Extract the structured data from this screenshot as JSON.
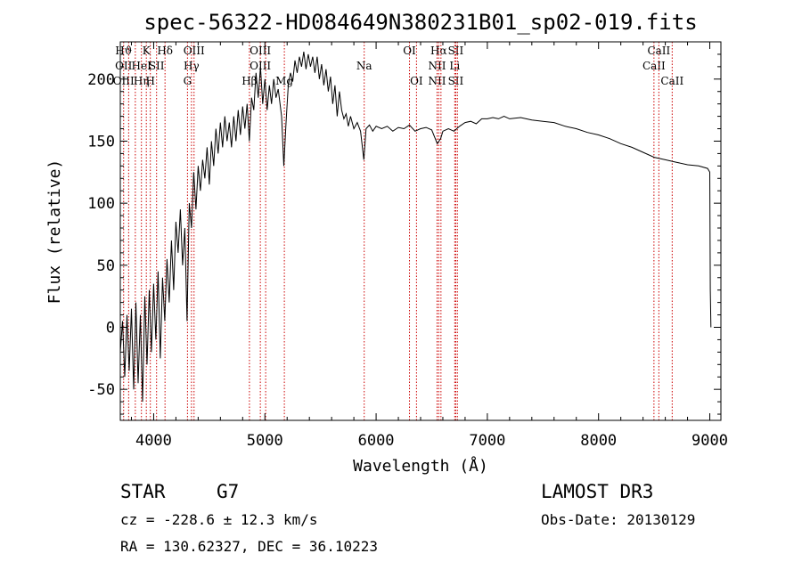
{
  "chart_data": {
    "type": "line",
    "title": "spec-56322-HD084649N380231B01_sp02-019.fits",
    "xlabel": "Wavelength (Å)",
    "ylabel": "Flux (relative)",
    "xlim": [
      3700,
      9100
    ],
    "ylim": [
      -75,
      230
    ],
    "xticks": [
      4000,
      5000,
      6000,
      7000,
      8000,
      9000
    ],
    "yticks": [
      -50,
      0,
      50,
      100,
      150,
      200
    ],
    "grid": false,
    "series": [
      {
        "color": "#000000",
        "points": [
          [
            3700,
            -20
          ],
          [
            3720,
            5
          ],
          [
            3740,
            -40
          ],
          [
            3760,
            10
          ],
          [
            3780,
            -35
          ],
          [
            3800,
            15
          ],
          [
            3820,
            -50
          ],
          [
            3840,
            20
          ],
          [
            3860,
            -45
          ],
          [
            3880,
            10
          ],
          [
            3900,
            -60
          ],
          [
            3920,
            25
          ],
          [
            3940,
            -30
          ],
          [
            3960,
            30
          ],
          [
            3980,
            -20
          ],
          [
            4000,
            35
          ],
          [
            4020,
            -10
          ],
          [
            4040,
            45
          ],
          [
            4060,
            -25
          ],
          [
            4080,
            40
          ],
          [
            4100,
            5
          ],
          [
            4120,
            55
          ],
          [
            4140,
            20
          ],
          [
            4160,
            70
          ],
          [
            4180,
            30
          ],
          [
            4200,
            85
          ],
          [
            4220,
            60
          ],
          [
            4240,
            95
          ],
          [
            4260,
            50
          ],
          [
            4280,
            80
          ],
          [
            4300,
            5
          ],
          [
            4320,
            100
          ],
          [
            4340,
            80
          ],
          [
            4360,
            125
          ],
          [
            4380,
            95
          ],
          [
            4400,
            130
          ],
          [
            4420,
            110
          ],
          [
            4440,
            135
          ],
          [
            4460,
            120
          ],
          [
            4480,
            145
          ],
          [
            4500,
            115
          ],
          [
            4520,
            150
          ],
          [
            4540,
            130
          ],
          [
            4560,
            160
          ],
          [
            4580,
            140
          ],
          [
            4600,
            165
          ],
          [
            4620,
            145
          ],
          [
            4640,
            170
          ],
          [
            4660,
            150
          ],
          [
            4680,
            165
          ],
          [
            4700,
            145
          ],
          [
            4720,
            170
          ],
          [
            4740,
            150
          ],
          [
            4760,
            175
          ],
          [
            4780,
            155
          ],
          [
            4800,
            178
          ],
          [
            4820,
            160
          ],
          [
            4840,
            180
          ],
          [
            4860,
            150
          ],
          [
            4880,
            185
          ],
          [
            4900,
            175
          ],
          [
            4920,
            205
          ],
          [
            4940,
            185
          ],
          [
            4960,
            210
          ],
          [
            4980,
            180
          ],
          [
            5000,
            200
          ],
          [
            5020,
            175
          ],
          [
            5040,
            195
          ],
          [
            5060,
            180
          ],
          [
            5080,
            200
          ],
          [
            5100,
            185
          ],
          [
            5120,
            192
          ],
          [
            5150,
            170
          ],
          [
            5170,
            130
          ],
          [
            5190,
            165
          ],
          [
            5210,
            195
          ],
          [
            5230,
            205
          ],
          [
            5250,
            198
          ],
          [
            5270,
            215
          ],
          [
            5290,
            205
          ],
          [
            5310,
            218
          ],
          [
            5330,
            210
          ],
          [
            5350,
            222
          ],
          [
            5370,
            208
          ],
          [
            5390,
            220
          ],
          [
            5410,
            210
          ],
          [
            5430,
            218
          ],
          [
            5450,
            205
          ],
          [
            5470,
            218
          ],
          [
            5490,
            200
          ],
          [
            5510,
            212
          ],
          [
            5530,
            195
          ],
          [
            5550,
            208
          ],
          [
            5570,
            190
          ],
          [
            5590,
            202
          ],
          [
            5610,
            180
          ],
          [
            5630,
            195
          ],
          [
            5650,
            170
          ],
          [
            5670,
            190
          ],
          [
            5690,
            175
          ],
          [
            5710,
            168
          ],
          [
            5730,
            172
          ],
          [
            5750,
            162
          ],
          [
            5770,
            170
          ],
          [
            5800,
            160
          ],
          [
            5830,
            165
          ],
          [
            5860,
            158
          ],
          [
            5890,
            135
          ],
          [
            5910,
            160
          ],
          [
            5940,
            163
          ],
          [
            5970,
            158
          ],
          [
            6000,
            162
          ],
          [
            6050,
            160
          ],
          [
            6100,
            162
          ],
          [
            6150,
            158
          ],
          [
            6200,
            161
          ],
          [
            6250,
            160
          ],
          [
            6300,
            163
          ],
          [
            6350,
            158
          ],
          [
            6400,
            160
          ],
          [
            6450,
            161
          ],
          [
            6500,
            159
          ],
          [
            6550,
            148
          ],
          [
            6580,
            152
          ],
          [
            6600,
            158
          ],
          [
            6650,
            160
          ],
          [
            6700,
            158
          ],
          [
            6750,
            162
          ],
          [
            6800,
            165
          ],
          [
            6850,
            166
          ],
          [
            6900,
            164
          ],
          [
            6950,
            168
          ],
          [
            7000,
            168
          ],
          [
            7050,
            169
          ],
          [
            7100,
            168
          ],
          [
            7150,
            170
          ],
          [
            7200,
            168
          ],
          [
            7300,
            169
          ],
          [
            7400,
            167
          ],
          [
            7500,
            166
          ],
          [
            7600,
            165
          ],
          [
            7700,
            162
          ],
          [
            7800,
            160
          ],
          [
            7900,
            157
          ],
          [
            8000,
            155
          ],
          [
            8100,
            152
          ],
          [
            8200,
            148
          ],
          [
            8300,
            145
          ],
          [
            8400,
            141
          ],
          [
            8500,
            137
          ],
          [
            8600,
            135
          ],
          [
            8700,
            133
          ],
          [
            8800,
            131
          ],
          [
            8900,
            130
          ],
          [
            8980,
            128
          ],
          [
            9000,
            125
          ],
          [
            9005,
            30
          ],
          [
            9010,
            0
          ]
        ]
      }
    ],
    "line_markers": [
      {
        "wl": 3730,
        "labels": [
          "Hϑ",
          "OII",
          "OIII"
        ]
      },
      {
        "wl": 3775,
        "labels": [
          "",
          "",
          ""
        ]
      },
      {
        "wl": 3835,
        "labels": [
          "",
          "",
          ""
        ]
      },
      {
        "wl": 3890,
        "labels": [
          "",
          "HeI",
          "Hη"
        ]
      },
      {
        "wl": 3934,
        "labels": [
          "K",
          "",
          ""
        ]
      },
      {
        "wl": 3970,
        "labels": [
          "",
          "",
          "H"
        ]
      },
      {
        "wl": 4026,
        "labels": [
          "",
          "SII",
          ""
        ]
      },
      {
        "wl": 4102,
        "labels": [
          "Hδ",
          "",
          ""
        ]
      },
      {
        "wl": 4304,
        "labels": [
          "",
          "",
          "G"
        ]
      },
      {
        "wl": 4340,
        "labels": [
          "",
          "Hγ",
          ""
        ]
      },
      {
        "wl": 4363,
        "labels": [
          "OIII",
          "",
          ""
        ]
      },
      {
        "wl": 4861,
        "labels": [
          "",
          "",
          "Hβ"
        ]
      },
      {
        "wl": 4959,
        "labels": [
          "OIII",
          "OIII",
          ""
        ]
      },
      {
        "wl": 5007,
        "labels": [
          "",
          "",
          ""
        ]
      },
      {
        "wl": 5175,
        "labels": [
          "",
          "",
          "Mg"
        ]
      },
      {
        "wl": 5893,
        "labels": [
          "",
          "Na",
          ""
        ]
      },
      {
        "wl": 6300,
        "labels": [
          "OI",
          "",
          ""
        ]
      },
      {
        "wl": 6363,
        "labels": [
          "",
          "",
          "OI"
        ]
      },
      {
        "wl": 6548,
        "labels": [
          "",
          "NII",
          "NII"
        ]
      },
      {
        "wl": 6563,
        "labels": [
          "Hα",
          "",
          ""
        ]
      },
      {
        "wl": 6583,
        "labels": [
          "",
          "",
          ""
        ]
      },
      {
        "wl": 6707,
        "labels": [
          "",
          "Li",
          ""
        ]
      },
      {
        "wl": 6716,
        "labels": [
          "SII",
          "",
          "SII"
        ]
      },
      {
        "wl": 6731,
        "labels": [
          "",
          "",
          ""
        ]
      },
      {
        "wl": 8498,
        "labels": [
          "",
          "CaII",
          ""
        ]
      },
      {
        "wl": 8542,
        "labels": [
          "CaII",
          "",
          ""
        ]
      },
      {
        "wl": 8662,
        "labels": [
          "",
          "",
          "CaII"
        ]
      }
    ]
  },
  "info": {
    "object_type": "STAR",
    "subclass": "G7",
    "survey": "LAMOST DR3",
    "cz": "cz = -228.6 ± 12.3 km/s",
    "obs_date": "Obs-Date: 20130129",
    "coords": "RA = 130.62327, DEC =  36.10223"
  }
}
